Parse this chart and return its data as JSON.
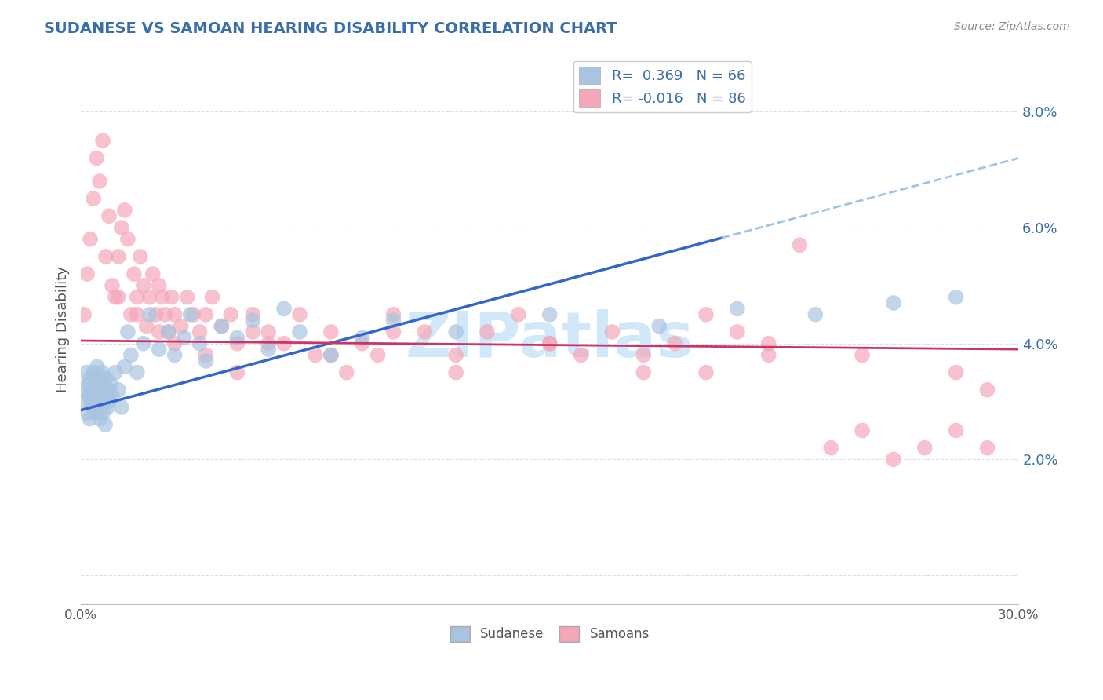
{
  "title": "SUDANESE VS SAMOAN HEARING DISABILITY CORRELATION CHART",
  "source": "Source: ZipAtlas.com",
  "ylabel": "Hearing Disability",
  "xlim": [
    0.0,
    30.0
  ],
  "ylim": [
    -0.5,
    9.0
  ],
  "ytick_vals": [
    0.0,
    2.0,
    4.0,
    6.0,
    8.0
  ],
  "ytick_labels": [
    "",
    "2.0%",
    "4.0%",
    "6.0%",
    "8.0%"
  ],
  "sudanese_color": "#a8c4e0",
  "samoan_color": "#f4a7b9",
  "blue_line_color": "#3366cc",
  "pink_line_color": "#cc3366",
  "dashed_line_color": "#a0c4e8",
  "watermark_color": "#d0e8f8",
  "background_color": "#ffffff",
  "grid_color": "#d8d8d8",
  "title_color": "#3a6ea8",
  "sud_N": 66,
  "sam_N": 86,
  "sud_R": 0.369,
  "sam_R": -0.016,
  "blue_line_x0": 0.0,
  "blue_line_y0": 2.85,
  "blue_line_x1": 30.0,
  "blue_line_y1": 7.2,
  "pink_line_x0": 0.0,
  "pink_line_y0": 4.05,
  "pink_line_x1": 30.0,
  "pink_line_y1": 3.9,
  "blue_solid_end_x": 20.5,
  "sud_scatter_x": [
    0.1,
    0.15,
    0.18,
    0.2,
    0.22,
    0.25,
    0.28,
    0.3,
    0.32,
    0.35,
    0.38,
    0.4,
    0.42,
    0.45,
    0.48,
    0.5,
    0.52,
    0.55,
    0.58,
    0.6,
    0.62,
    0.65,
    0.68,
    0.7,
    0.72,
    0.75,
    0.78,
    0.8,
    0.82,
    0.85,
    0.88,
    0.9,
    0.95,
    1.0,
    1.1,
    1.2,
    1.3,
    1.4,
    1.5,
    1.6,
    1.8,
    2.0,
    2.2,
    2.5,
    2.8,
    3.0,
    3.3,
    3.5,
    3.8,
    4.0,
    4.5,
    5.0,
    5.5,
    6.0,
    6.5,
    7.0,
    8.0,
    9.0,
    10.0,
    12.0,
    15.0,
    18.5,
    21.0,
    23.5,
    26.0,
    28.0
  ],
  "sud_scatter_y": [
    3.2,
    3.0,
    3.5,
    2.8,
    3.3,
    3.1,
    2.7,
    3.4,
    3.0,
    3.2,
    2.9,
    3.5,
    3.1,
    2.8,
    3.3,
    3.0,
    3.6,
    2.9,
    3.2,
    3.4,
    2.7,
    3.1,
    3.5,
    2.8,
    3.3,
    3.0,
    2.6,
    3.4,
    3.1,
    2.9,
    3.2,
    3.0,
    3.3,
    3.1,
    3.5,
    3.2,
    2.9,
    3.6,
    4.2,
    3.8,
    3.5,
    4.0,
    4.5,
    3.9,
    4.2,
    3.8,
    4.1,
    4.5,
    4.0,
    3.7,
    4.3,
    4.1,
    4.4,
    3.9,
    4.6,
    4.2,
    3.8,
    4.1,
    4.4,
    4.2,
    4.5,
    4.3,
    4.6,
    4.5,
    4.7,
    4.8
  ],
  "sam_scatter_x": [
    0.1,
    0.2,
    0.3,
    0.4,
    0.5,
    0.6,
    0.7,
    0.8,
    0.9,
    1.0,
    1.1,
    1.2,
    1.3,
    1.4,
    1.5,
    1.6,
    1.7,
    1.8,
    1.9,
    2.0,
    2.1,
    2.2,
    2.3,
    2.4,
    2.5,
    2.6,
    2.7,
    2.8,
    2.9,
    3.0,
    3.2,
    3.4,
    3.6,
    3.8,
    4.0,
    4.2,
    4.5,
    4.8,
    5.0,
    5.5,
    6.0,
    6.5,
    7.0,
    7.5,
    8.0,
    8.5,
    9.0,
    9.5,
    10.0,
    11.0,
    12.0,
    13.0,
    14.0,
    15.0,
    16.0,
    17.0,
    18.0,
    19.0,
    20.0,
    21.0,
    22.0,
    23.0,
    24.0,
    25.0,
    26.0,
    27.0,
    28.0,
    29.0,
    1.2,
    1.8,
    2.5,
    3.0,
    4.0,
    5.0,
    6.0,
    8.0,
    10.0,
    12.0,
    15.0,
    18.0,
    20.0,
    22.0,
    25.0,
    28.0,
    29.0,
    5.5
  ],
  "sam_scatter_y": [
    4.5,
    5.2,
    5.8,
    6.5,
    7.2,
    6.8,
    7.5,
    5.5,
    6.2,
    5.0,
    4.8,
    5.5,
    6.0,
    6.3,
    5.8,
    4.5,
    5.2,
    4.8,
    5.5,
    5.0,
    4.3,
    4.8,
    5.2,
    4.5,
    5.0,
    4.8,
    4.5,
    4.2,
    4.8,
    4.5,
    4.3,
    4.8,
    4.5,
    4.2,
    4.5,
    4.8,
    4.3,
    4.5,
    4.0,
    4.5,
    4.2,
    4.0,
    4.5,
    3.8,
    4.2,
    3.5,
    4.0,
    3.8,
    4.5,
    4.2,
    3.8,
    4.2,
    4.5,
    4.0,
    3.8,
    4.2,
    3.5,
    4.0,
    4.5,
    4.2,
    3.8,
    5.7,
    2.2,
    2.5,
    2.0,
    2.2,
    2.5,
    2.2,
    4.8,
    4.5,
    4.2,
    4.0,
    3.8,
    3.5,
    4.0,
    3.8,
    4.2,
    3.5,
    4.0,
    3.8,
    3.5,
    4.0,
    3.8,
    3.5,
    3.2,
    4.2
  ]
}
